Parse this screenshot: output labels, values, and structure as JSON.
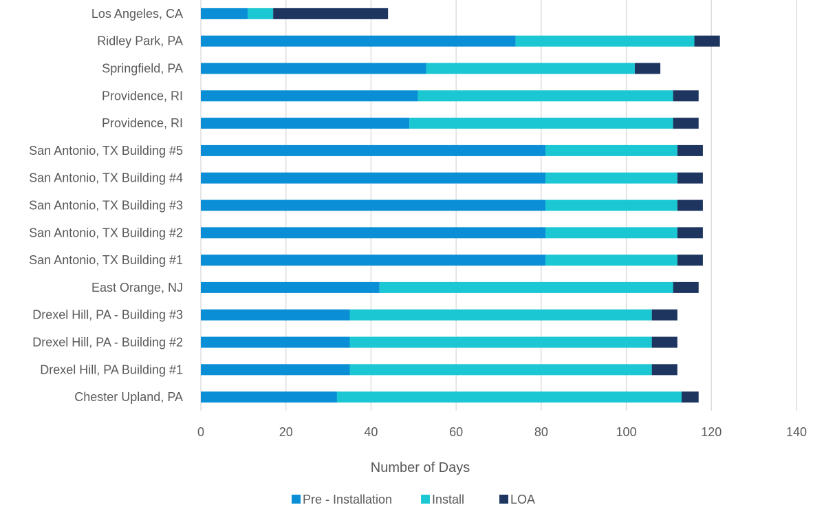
{
  "chart_data": {
    "type": "bar",
    "orientation": "horizontal",
    "stacked": true,
    "categories": [
      "Los Angeles, CA",
      "Ridley Park, PA",
      "Springfield, PA",
      "Providence, RI",
      "Providence, RI",
      "San Antonio, TX Building #5",
      "San Antonio, TX Building #4",
      "San Antonio, TX Building #3",
      "San Antonio, TX Building #2",
      "San Antonio, TX Building #1",
      "East Orange, NJ",
      "Drexel Hill, PA - Building #3",
      "Drexel Hill, PA - Building #2",
      "Drexel Hill, PA Building #1",
      "Chester Upland, PA"
    ],
    "series": [
      {
        "name": "Pre - Installation",
        "color": "#0A8FD6",
        "values": [
          11,
          74,
          53,
          51,
          49,
          81,
          81,
          81,
          81,
          81,
          42,
          35,
          35,
          35,
          32
        ]
      },
      {
        "name": "Install",
        "color": "#1AC7D2",
        "values": [
          6,
          42,
          49,
          60,
          62,
          31,
          31,
          31,
          31,
          31,
          69,
          71,
          71,
          71,
          81
        ]
      },
      {
        "name": "LOA",
        "color": "#1E3560",
        "values": [
          27,
          6,
          6,
          6,
          6,
          6,
          6,
          6,
          6,
          6,
          6,
          6,
          6,
          6,
          4
        ]
      }
    ],
    "xlabel": "Number of Days",
    "ylabel": "",
    "title": "",
    "xlim": [
      0,
      140
    ],
    "xticks": [
      "0",
      "20",
      "40",
      "60",
      "80",
      "100",
      "120",
      "140"
    ],
    "grid": "vertical",
    "legend_position": "bottom"
  }
}
